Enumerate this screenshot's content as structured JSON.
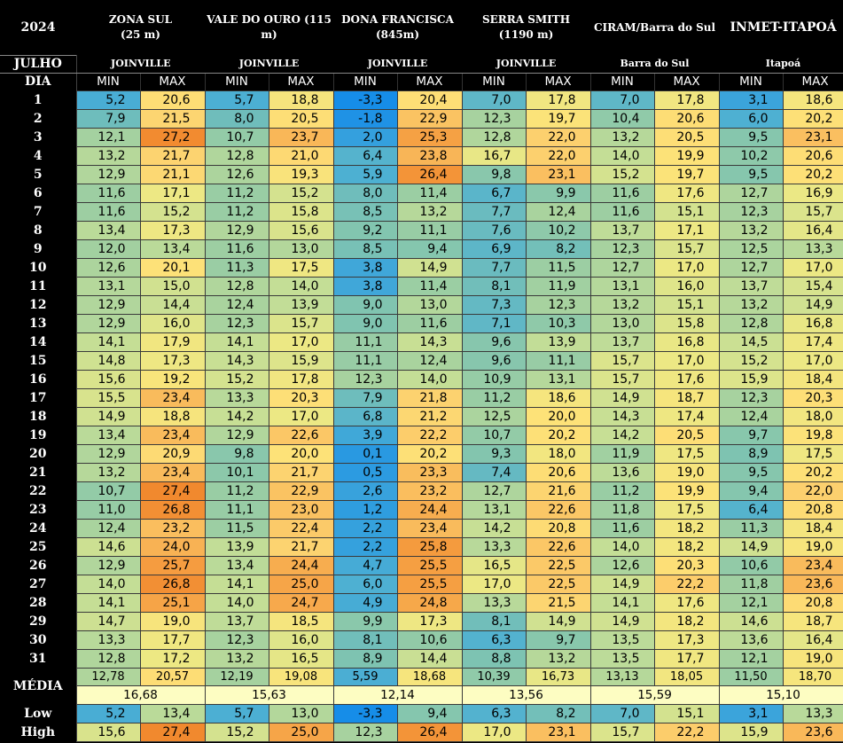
{
  "header": {
    "year": "2024",
    "month_label": "JULHO",
    "day_label": "DIA",
    "min_label": "MIN",
    "max_label": "MAX",
    "stations": [
      {
        "name": "ZONA SUL\n(25 m)",
        "city": "JOINVILLE"
      },
      {
        "name": "VALE DO OURO (115\nm)",
        "city": "JOINVILLE"
      },
      {
        "name": "DONA FRANCISCA\n(845m)",
        "city": "JOINVILLE"
      },
      {
        "name": "SERRA SMITH\n(1190 m)",
        "city": "JOINVILLE"
      },
      {
        "name": "CIRAM/Barra do Sul",
        "city": "Barra do Sul"
      },
      {
        "name": "INMET-ITAPOÁ",
        "city": "Itapoá"
      }
    ]
  },
  "days": [
    {
      "day": "1",
      "v": [
        "5,2",
        "20,6",
        "5,7",
        "18,8",
        "-3,3",
        "20,4",
        "7,0",
        "17,8",
        "7,0",
        "17,8",
        "3,1",
        "18,6"
      ]
    },
    {
      "day": "2",
      "v": [
        "7,9",
        "21,5",
        "8,0",
        "20,5",
        "-1,8",
        "22,9",
        "12,3",
        "19,7",
        "10,4",
        "20,6",
        "6,0",
        "20,2"
      ]
    },
    {
      "day": "3",
      "v": [
        "12,1",
        "27,2",
        "10,7",
        "23,7",
        "2,0",
        "25,3",
        "12,8",
        "22,0",
        "13,2",
        "20,5",
        "9,5",
        "23,1"
      ]
    },
    {
      "day": "4",
      "v": [
        "13,2",
        "21,7",
        "12,8",
        "21,0",
        "6,4",
        "23,8",
        "16,7",
        "22,0",
        "14,0",
        "19,9",
        "10,2",
        "20,6"
      ]
    },
    {
      "day": "5",
      "v": [
        "12,9",
        "21,1",
        "12,6",
        "19,3",
        "5,9",
        "26,4",
        "9,8",
        "23,1",
        "15,2",
        "19,7",
        "9,5",
        "20,2"
      ]
    },
    {
      "day": "6",
      "v": [
        "11,6",
        "17,1",
        "11,2",
        "15,2",
        "8,0",
        "11,4",
        "6,7",
        "9,9",
        "11,6",
        "17,6",
        "12,7",
        "16,9"
      ]
    },
    {
      "day": "7",
      "v": [
        "11,6",
        "15,2",
        "11,2",
        "15,8",
        "8,5",
        "13,2",
        "7,7",
        "12,4",
        "11,6",
        "15,1",
        "12,3",
        "15,7"
      ]
    },
    {
      "day": "8",
      "v": [
        "13,4",
        "17,3",
        "12,9",
        "15,6",
        "9,2",
        "11,1",
        "7,6",
        "10,2",
        "13,7",
        "17,1",
        "13,2",
        "16,4"
      ]
    },
    {
      "day": "9",
      "v": [
        "12,0",
        "13,4",
        "11,6",
        "13,0",
        "8,5",
        "9,4",
        "6,9",
        "8,2",
        "12,3",
        "15,7",
        "12,5",
        "13,3"
      ]
    },
    {
      "day": "10",
      "v": [
        "12,6",
        "20,1",
        "11,3",
        "17,5",
        "3,8",
        "14,9",
        "7,7",
        "11,5",
        "12,7",
        "17,0",
        "12,7",
        "17,0"
      ]
    },
    {
      "day": "11",
      "v": [
        "13,1",
        "15,0",
        "12,8",
        "14,0",
        "3,8",
        "11,4",
        "8,1",
        "11,9",
        "13,1",
        "16,0",
        "13,7",
        "15,4"
      ]
    },
    {
      "day": "12",
      "v": [
        "12,9",
        "14,4",
        "12,4",
        "13,9",
        "9,0",
        "13,0",
        "7,3",
        "12,3",
        "13,2",
        "15,1",
        "13,2",
        "14,9"
      ]
    },
    {
      "day": "13",
      "v": [
        "12,9",
        "16,0",
        "12,3",
        "15,7",
        "9,0",
        "11,6",
        "7,1",
        "10,3",
        "13,0",
        "15,8",
        "12,8",
        "16,8"
      ]
    },
    {
      "day": "14",
      "v": [
        "14,1",
        "17,9",
        "14,1",
        "17,0",
        "11,1",
        "14,3",
        "9,6",
        "13,9",
        "13,7",
        "16,8",
        "14,5",
        "17,4"
      ]
    },
    {
      "day": "15",
      "v": [
        "14,8",
        "17,3",
        "14,3",
        "15,9",
        "11,1",
        "12,4",
        "9,6",
        "11,1",
        "15,7",
        "17,0",
        "15,2",
        "17,0"
      ]
    },
    {
      "day": "16",
      "v": [
        "15,6",
        "19,2",
        "15,2",
        "17,8",
        "12,3",
        "14,0",
        "10,9",
        "13,1",
        "15,7",
        "17,6",
        "15,9",
        "18,4"
      ]
    },
    {
      "day": "17",
      "v": [
        "15,5",
        "23,4",
        "13,3",
        "20,3",
        "7,9",
        "21,8",
        "11,2",
        "18,6",
        "14,9",
        "18,7",
        "12,3",
        "20,3"
      ]
    },
    {
      "day": "18",
      "v": [
        "14,9",
        "18,8",
        "14,2",
        "17,0",
        "6,8",
        "21,2",
        "12,5",
        "20,0",
        "14,3",
        "17,4",
        "12,4",
        "18,0"
      ]
    },
    {
      "day": "19",
      "v": [
        "13,4",
        "23,4",
        "12,9",
        "22,6",
        "3,9",
        "22,2",
        "10,7",
        "20,2",
        "14,2",
        "20,5",
        "9,7",
        "19,8"
      ]
    },
    {
      "day": "20",
      "v": [
        "12,9",
        "20,9",
        "9,8",
        "20,0",
        "0,1",
        "20,2",
        "9,3",
        "18,0",
        "11,9",
        "17,5",
        "8,9",
        "17,5"
      ]
    },
    {
      "day": "21",
      "v": [
        "13,2",
        "23,4",
        "10,1",
        "21,7",
        "0,5",
        "23,3",
        "7,4",
        "20,6",
        "13,6",
        "19,0",
        "9,5",
        "20,2"
      ]
    },
    {
      "day": "22",
      "v": [
        "10,7",
        "27,4",
        "11,2",
        "22,9",
        "2,6",
        "23,2",
        "12,7",
        "21,6",
        "11,2",
        "19,9",
        "9,4",
        "22,0"
      ]
    },
    {
      "day": "23",
      "v": [
        "11,0",
        "26,8",
        "11,1",
        "23,0",
        "1,2",
        "24,4",
        "13,1",
        "22,6",
        "11,8",
        "17,5",
        "6,4",
        "20,8"
      ]
    },
    {
      "day": "24",
      "v": [
        "12,4",
        "23,2",
        "11,5",
        "22,4",
        "2,2",
        "23,4",
        "14,2",
        "20,8",
        "11,6",
        "18,2",
        "11,3",
        "18,4"
      ]
    },
    {
      "day": "25",
      "v": [
        "14,6",
        "24,0",
        "13,9",
        "21,7",
        "2,2",
        "25,8",
        "13,3",
        "22,6",
        "14,0",
        "18,2",
        "14,9",
        "19,0"
      ]
    },
    {
      "day": "26",
      "v": [
        "12,9",
        "25,7",
        "13,4",
        "24,4",
        "4,7",
        "25,5",
        "16,5",
        "22,5",
        "12,6",
        "20,3",
        "10,6",
        "23,4"
      ]
    },
    {
      "day": "27",
      "v": [
        "14,0",
        "26,8",
        "14,1",
        "25,0",
        "6,0",
        "25,5",
        "17,0",
        "22,5",
        "14,9",
        "22,2",
        "11,8",
        "23,6"
      ]
    },
    {
      "day": "28",
      "v": [
        "14,1",
        "25,1",
        "14,0",
        "24,7",
        "4,9",
        "24,8",
        "13,3",
        "21,5",
        "14,1",
        "17,6",
        "12,1",
        "20,8"
      ]
    },
    {
      "day": "29",
      "v": [
        "14,7",
        "19,0",
        "13,7",
        "18,5",
        "9,9",
        "17,3",
        "8,1",
        "14,9",
        "14,9",
        "18,2",
        "14,6",
        "18,7"
      ]
    },
    {
      "day": "30",
      "v": [
        "13,3",
        "17,7",
        "12,3",
        "16,0",
        "8,1",
        "10,6",
        "6,3",
        "9,7",
        "13,5",
        "17,3",
        "13,6",
        "16,4"
      ]
    },
    {
      "day": "31",
      "v": [
        "12,8",
        "17,2",
        "13,2",
        "16,5",
        "8,9",
        "14,4",
        "8,8",
        "13,2",
        "13,5",
        "17,7",
        "12,1",
        "19,0"
      ]
    }
  ],
  "media": {
    "label": "MÉDIA",
    "v": [
      "12,78",
      "20,57",
      "12,19",
      "19,08",
      "5,59",
      "18,68",
      "10,39",
      "16,73",
      "13,13",
      "18,05",
      "11,50",
      "18,70"
    ],
    "mean": [
      "16,68",
      "15,63",
      "12,14",
      "13,56",
      "15,59",
      "15,10"
    ]
  },
  "low": {
    "label": "Low",
    "v": [
      "5,2",
      "13,4",
      "5,7",
      "13,0",
      "-3,3",
      "9,4",
      "6,3",
      "8,2",
      "7,0",
      "15,1",
      "3,1",
      "13,3"
    ]
  },
  "high": {
    "label": "High",
    "v": [
      "15,6",
      "27,4",
      "15,2",
      "25,0",
      "12,3",
      "26,4",
      "17,0",
      "23,1",
      "15,7",
      "22,2",
      "15,9",
      "23,6"
    ]
  }
}
